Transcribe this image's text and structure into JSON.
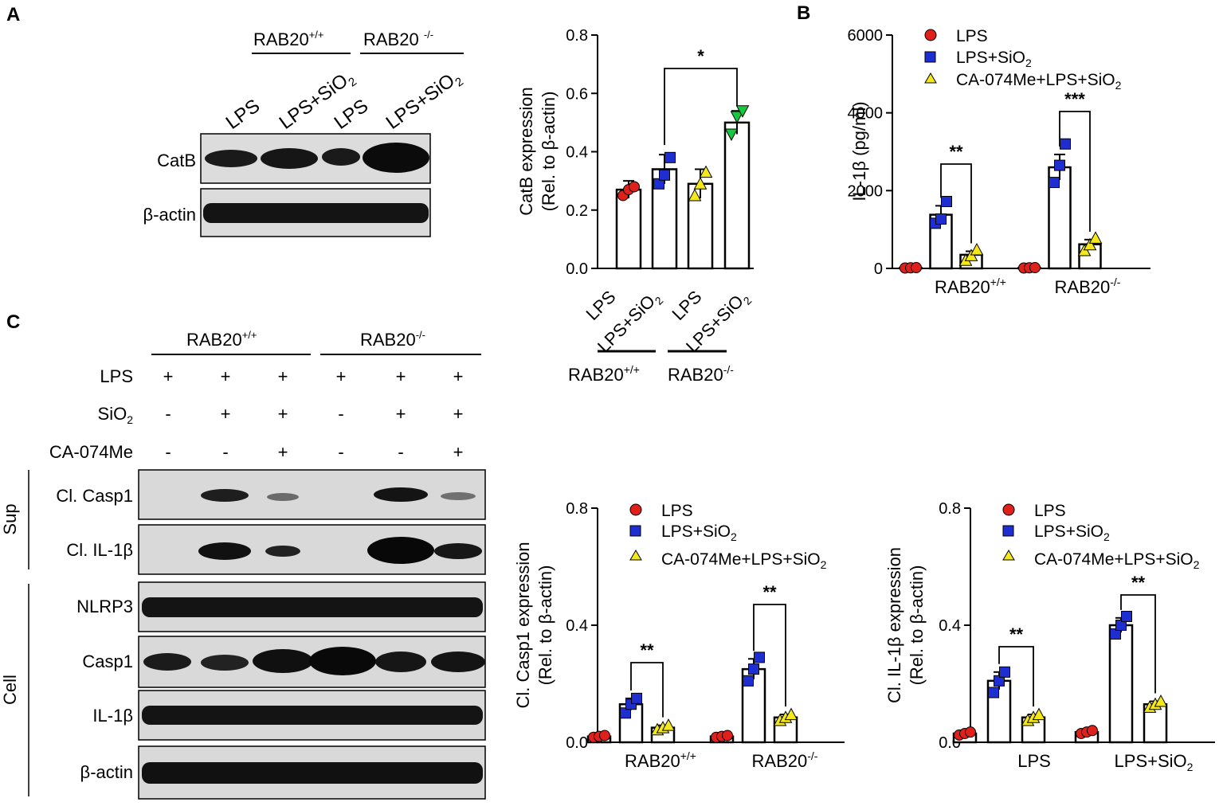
{
  "panels": {
    "A": "A",
    "B": "B",
    "C": "C"
  },
  "colors": {
    "lps": "#e0201b",
    "lps_sio2": "#1f2ed0",
    "ca074me": "#f4e71a",
    "green": "#16c93c",
    "band": "#111111",
    "blot_bg": "#d9d9d9"
  },
  "blotA": {
    "group_wt": "RAB20",
    "group_wt_sup": "+/+",
    "group_ko": "RAB20 ",
    "group_ko_sup": "-/-",
    "lanes": [
      "LPS",
      "LPS+SiO",
      "LPS",
      "LPS+SiO"
    ],
    "lane_sub": "2",
    "rows": [
      "CatB",
      "β-actin"
    ]
  },
  "blotC": {
    "group_wt": "RAB20",
    "group_wt_sup": "+/+",
    "group_ko": "RAB20",
    "group_ko_sup": "-/-",
    "treat_labels": [
      "LPS",
      "SiO",
      "CA-074Me"
    ],
    "treat_sub": "2",
    "treatments": [
      [
        "+",
        "+",
        "+",
        "+",
        "+",
        "+"
      ],
      [
        "-",
        "+",
        "+",
        "-",
        "+",
        "+"
      ],
      [
        "-",
        "-",
        "+",
        "-",
        "-",
        "+"
      ]
    ],
    "sections": [
      "Sup",
      "Cell"
    ],
    "rows": [
      "Cl. Casp1",
      "Cl. IL-1β",
      "NLRP3",
      "Casp1",
      "IL-1β",
      "β-actin"
    ]
  },
  "chart_data": [
    {
      "id": "A",
      "type": "bar",
      "categories": [
        "LPS",
        "LPS+SiO2",
        "LPS",
        "LPS+SiO2"
      ],
      "category_labels": [
        "LPS",
        "LPS+SiO",
        "LPS",
        "LPS+SiO"
      ],
      "category_sub": "2",
      "groups": [
        {
          "name": "RAB20",
          "sup": "+/+"
        },
        {
          "name": "RAB20",
          "sup": "-/-"
        }
      ],
      "values": [
        0.27,
        0.34,
        0.29,
        0.5
      ],
      "errors": [
        0.03,
        0.05,
        0.05,
        0.04
      ],
      "points": [
        [
          0.25,
          0.27,
          0.28
        ],
        [
          0.29,
          0.32,
          0.38
        ],
        [
          0.25,
          0.29,
          0.33
        ],
        [
          0.46,
          0.52,
          0.54
        ]
      ],
      "ylabel1": "CatB  expression",
      "ylabel2": "(Rel. to β-actin)",
      "ylim": [
        0,
        0.8
      ],
      "yticks": [
        "0.0",
        "0.2",
        "0.4",
        "0.6",
        "0.8"
      ],
      "significance": [
        {
          "from": 1,
          "to": 3,
          "label": "*"
        }
      ]
    },
    {
      "id": "B",
      "type": "bar",
      "groups": [
        {
          "name": "RAB20",
          "sup": "+/+"
        },
        {
          "name": "RAB20",
          "sup": "-/-"
        }
      ],
      "series": [
        {
          "name": "LPS",
          "values": [
            15,
            15
          ],
          "errors": [
            3,
            3
          ],
          "points": [
            [
              10,
              15,
              20
            ],
            [
              10,
              15,
              20
            ]
          ]
        },
        {
          "name": "LPS+SiO",
          "sub": "2",
          "values": [
            1380,
            2600
          ],
          "errors": [
            230,
            330
          ],
          "points": [
            [
              1160,
              1270,
              1720
            ],
            [
              2210,
              2650,
              3200
            ]
          ]
        },
        {
          "name": "CA-074Me+LPS+SiO",
          "sub": "2",
          "values": [
            350,
            620
          ],
          "errors": [
            90,
            120
          ],
          "points": [
            [
              210,
              330,
              480
            ],
            [
              460,
              610,
              780
            ]
          ]
        }
      ],
      "ylabel": "IL-1β (pg/ml)",
      "ylim": [
        0,
        6000
      ],
      "yticks": [
        "0",
        "2000",
        "4000",
        "6000"
      ],
      "significance": [
        {
          "group": 0,
          "label": "**"
        },
        {
          "group": 1,
          "label": "***"
        }
      ]
    },
    {
      "id": "C1",
      "type": "bar",
      "groups": [
        {
          "name": "RAB20",
          "sup": "+/+"
        },
        {
          "name": "RAB20",
          "sup": "-/-"
        }
      ],
      "series": [
        {
          "name": "LPS",
          "values": [
            0.02,
            0.02
          ],
          "errors": [
            0.003,
            0.003
          ],
          "points": [
            [
              0.017,
              0.02,
              0.023
            ],
            [
              0.017,
              0.02,
              0.023
            ]
          ]
        },
        {
          "name": "LPS+SiO",
          "sub": "2",
          "values": [
            0.13,
            0.25
          ],
          "errors": [
            0.02,
            0.035
          ],
          "points": [
            [
              0.1,
              0.13,
              0.15
            ],
            [
              0.21,
              0.25,
              0.29
            ]
          ]
        },
        {
          "name": "CA-074Me+LPS+SiO",
          "sub": "2",
          "values": [
            0.05,
            0.085
          ],
          "errors": [
            0.008,
            0.01
          ],
          "points": [
            [
              0.043,
              0.05,
              0.058
            ],
            [
              0.075,
              0.085,
              0.095
            ]
          ]
        }
      ],
      "ylabel1": "Cl. Casp1  expression",
      "ylabel2": "(Rel. to β-actin)",
      "ylim": [
        0,
        0.8
      ],
      "yticks": [
        "0.0",
        "0.4",
        "0.8"
      ],
      "significance": [
        {
          "group": 0,
          "label": "**"
        },
        {
          "group": 1,
          "label": "**"
        }
      ]
    },
    {
      "id": "C2",
      "type": "bar",
      "groups": [
        {
          "name": "LPS"
        },
        {
          "name": "LPS+SiO",
          "sub": "2"
        }
      ],
      "series": [
        {
          "name": "LPS",
          "values": [
            0.03,
            0.035
          ],
          "errors": [
            0.005,
            0.005
          ],
          "points": [
            [
              0.025,
              0.03,
              0.035
            ],
            [
              0.03,
              0.035,
              0.04
            ]
          ]
        },
        {
          "name": "LPS+SiO",
          "sub": "2",
          "values": [
            0.21,
            0.4
          ],
          "errors": [
            0.03,
            0.025
          ],
          "points": [
            [
              0.17,
              0.21,
              0.24
            ],
            [
              0.37,
              0.4,
              0.43
            ]
          ]
        },
        {
          "name": "CA-074Me+LPS+SiO",
          "sub": "2",
          "values": [
            0.085,
            0.13
          ],
          "errors": [
            0.01,
            0.01
          ],
          "points": [
            [
              0.075,
              0.085,
              0.095
            ],
            [
              0.12,
              0.13,
              0.14
            ]
          ]
        }
      ],
      "ylabel1": "Cl. IL-1β  expression",
      "ylabel2": "(Rel. to β-actin)",
      "ylim": [
        0,
        0.8
      ],
      "yticks": [
        "0.0",
        "0.4",
        "0.8"
      ],
      "significance": [
        {
          "group": 0,
          "label": "**"
        },
        {
          "group": 1,
          "label": "**"
        }
      ]
    }
  ]
}
